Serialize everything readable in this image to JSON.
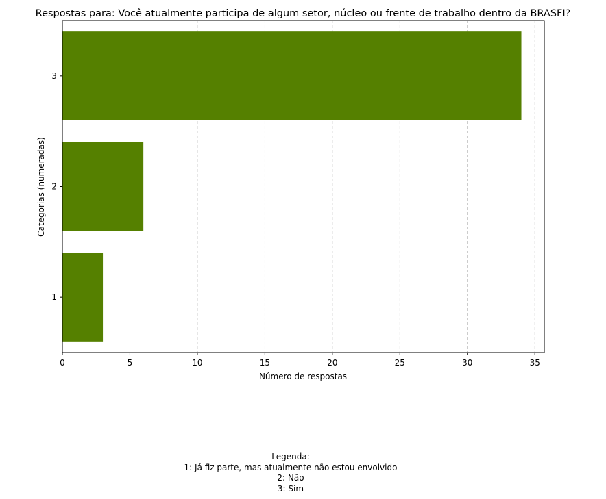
{
  "chart_data": {
    "type": "bar",
    "orientation": "horizontal",
    "title": "Respostas para: Você atualmente participa de algum setor, núcleo ou frente de trabalho dentro da BRASFI?",
    "xlabel": "Número de respostas",
    "ylabel": "Categorias (numeradas)",
    "categories": [
      "1",
      "2",
      "3"
    ],
    "values": [
      3,
      6,
      34
    ],
    "xlim": [
      0,
      35.7
    ],
    "xticks": [
      0,
      5,
      10,
      15,
      20,
      25,
      30,
      35
    ],
    "grid": "x-dashed",
    "bar_color": "#558000"
  },
  "legend_note": {
    "heading": "Legenda:",
    "items": [
      "1: Já fiz parte, mas atualmente não estou envolvido",
      "2: Não",
      "3: Sim"
    ]
  }
}
